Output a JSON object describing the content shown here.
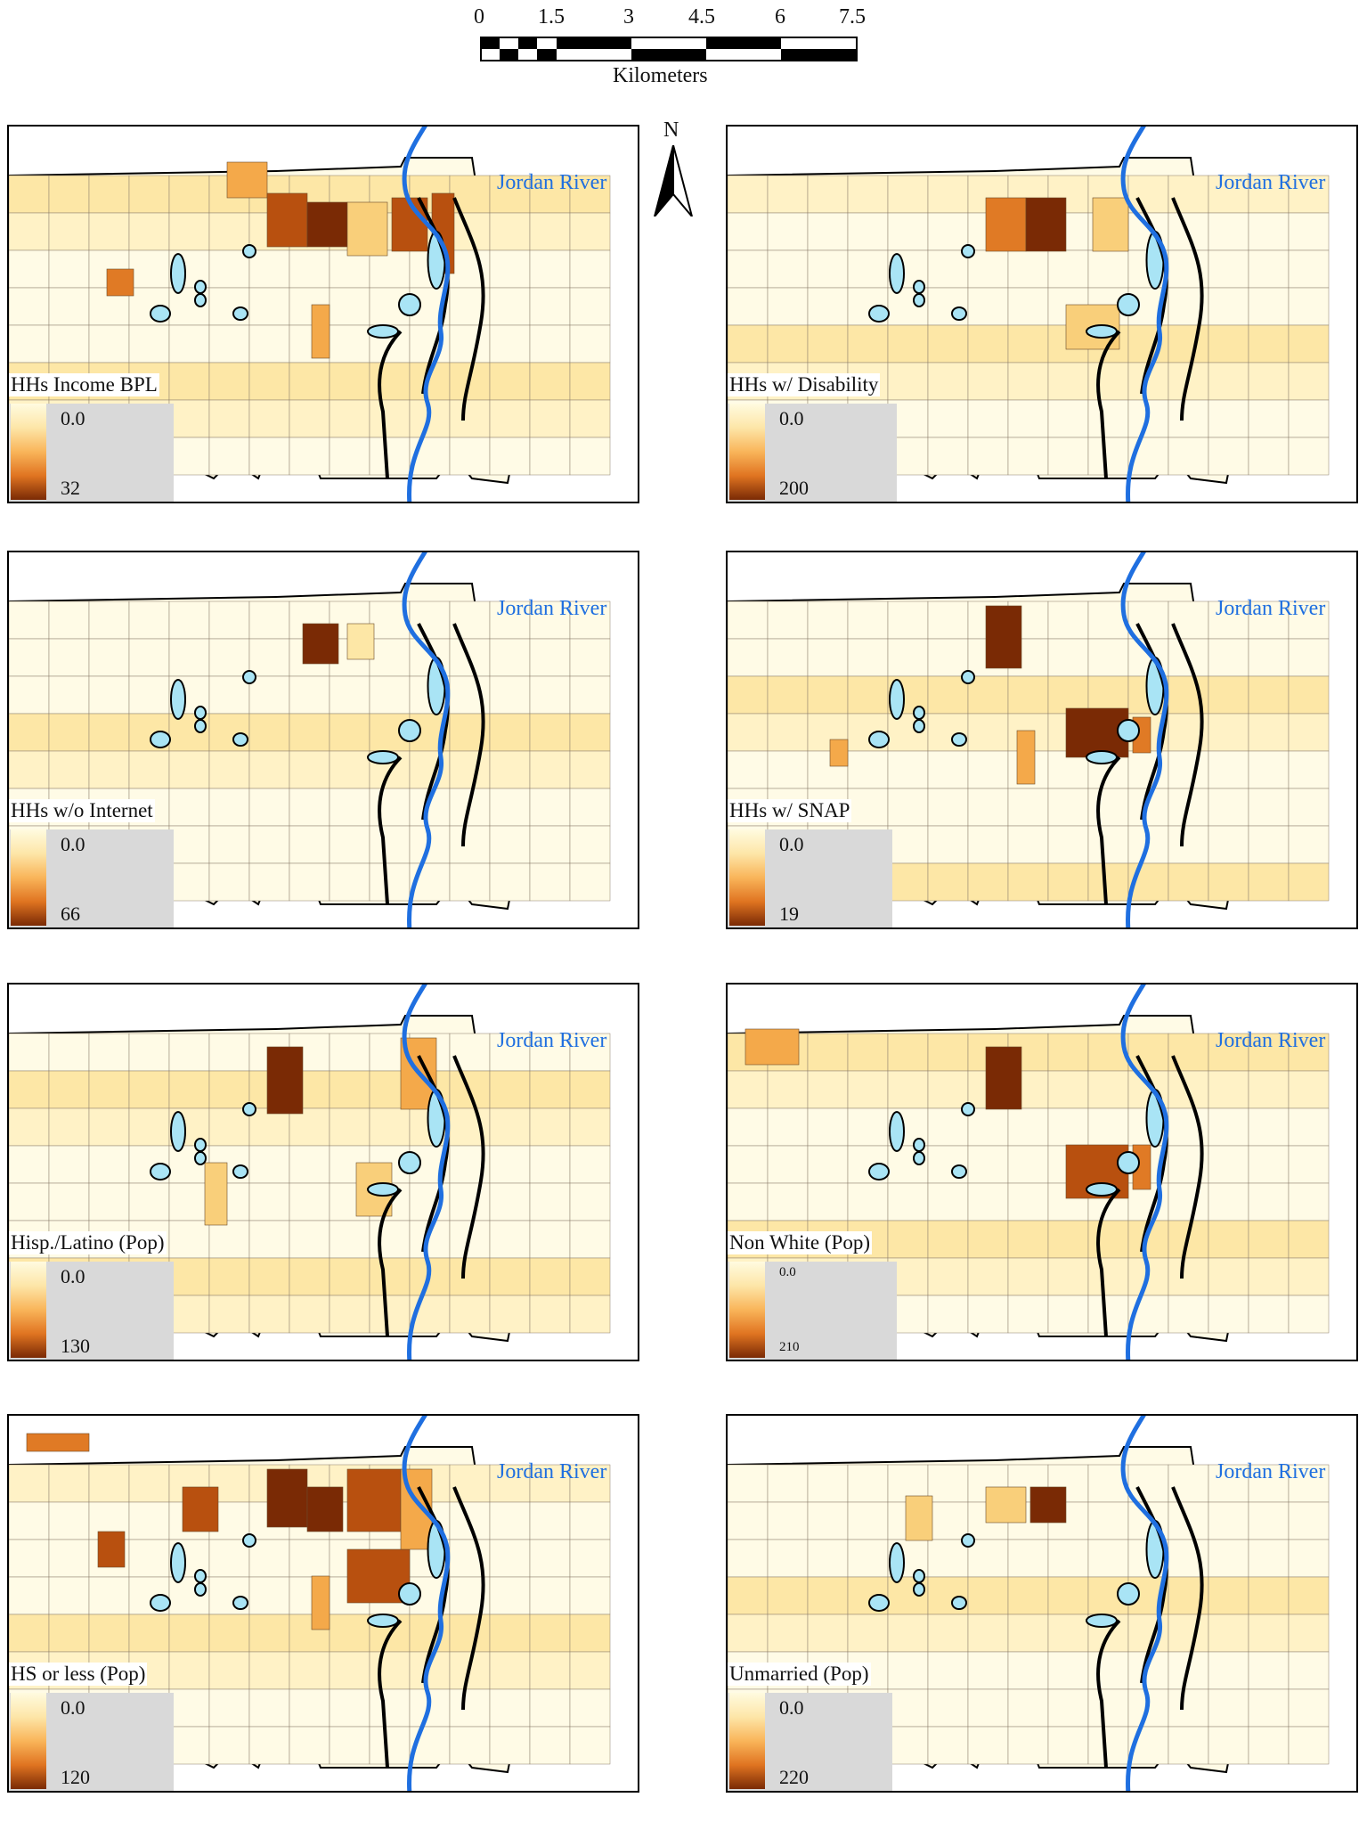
{
  "scale_bar": {
    "ticks": [
      "0",
      "1.5",
      "3",
      "4.5",
      "6",
      "7.5"
    ],
    "unit": "Kilometers"
  },
  "north_arrow": {
    "label": "N",
    "icon": "north-arrow-icon"
  },
  "river_label": "Jordan River",
  "colors": {
    "ramp_low": "#fffbe0",
    "ramp_high": "#7a2a05",
    "river": "#1f6fe0",
    "park": "#a9e4f5",
    "legend_bg": "#d9d9d9"
  },
  "panels": [
    {
      "id": "income-bpl",
      "title": "HHs Income BPL",
      "min": "0.0",
      "max": "32"
    },
    {
      "id": "disability",
      "title": "HHs w/ Disability",
      "min": "0.0",
      "max": "200"
    },
    {
      "id": "internet",
      "title": "HHs w/o Internet",
      "min": "0.0",
      "max": "66"
    },
    {
      "id": "snap",
      "title": "HHs w/ SNAP",
      "min": "0.0",
      "max": "19"
    },
    {
      "id": "hispanic",
      "title": "Hisp./Latino (Pop)",
      "min": "0.0",
      "max": "130"
    },
    {
      "id": "nonwhite",
      "title": "Non White (Pop)",
      "min": "0.0",
      "max": "210"
    },
    {
      "id": "hs-or-less",
      "title": "HS or less (Pop)",
      "min": "0.0",
      "max": "120"
    },
    {
      "id": "unmarried",
      "title": "Unmarried (Pop)",
      "min": "0.0",
      "max": "220"
    }
  ]
}
